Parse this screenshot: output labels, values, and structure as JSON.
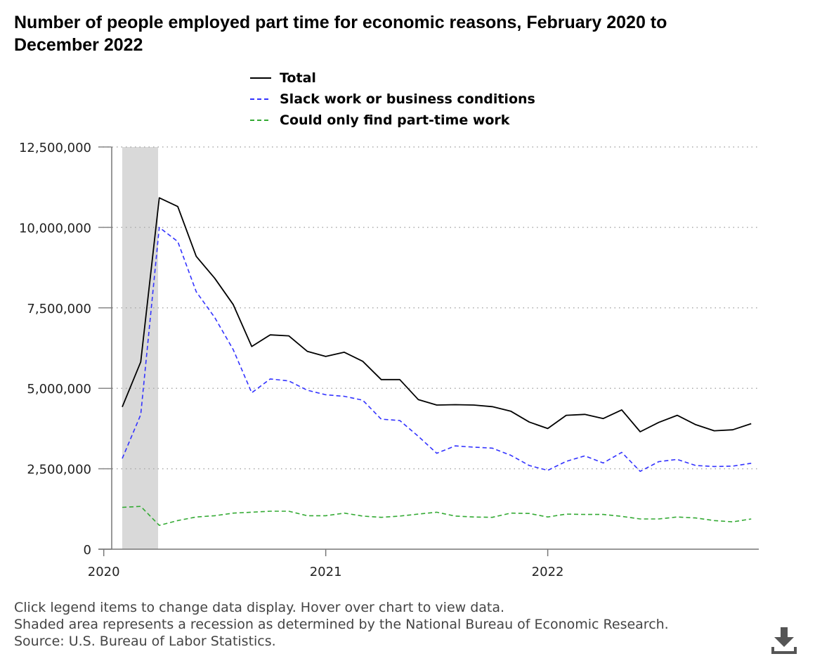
{
  "title": "Number of people employed part time for economic reasons, February 2020 to December 2022",
  "legend": [
    {
      "label": "Total",
      "color": "#000000",
      "dash": "solid"
    },
    {
      "label": "Slack work or business conditions",
      "color": "#3333ff",
      "dash": "dashed"
    },
    {
      "label": "Could only find part-time work",
      "color": "#33aa33",
      "dash": "dashed"
    }
  ],
  "footer": {
    "line1": "Click legend items to change data display. Hover over chart to view data.",
    "line2": "Shaded area represents a recession as determined by the National Bureau of Economic Research.",
    "line3": "Source: U.S. Bureau of Labor Statistics."
  },
  "download_icon": "download-icon",
  "chart_data": {
    "type": "line",
    "title": "Number of people employed part time for economic reasons, February 2020 to December 2022",
    "xlabel": "",
    "ylabel": "",
    "ylim": [
      0,
      12500000
    ],
    "yticks": [
      0,
      2500000,
      5000000,
      7500000,
      10000000,
      12500000
    ],
    "ytick_labels": [
      "0",
      "2,500,000",
      "5,000,000",
      "7,500,000",
      "10,000,000",
      "12,500,000"
    ],
    "xticks": [
      "2020",
      "2021",
      "2022"
    ],
    "xtick_months": [
      "2020-01",
      "2021-01",
      "2022-01"
    ],
    "grid": "horizontal dotted",
    "legend_position": "top",
    "recession": {
      "start": "2020-02",
      "end": "2020-04"
    },
    "x": [
      "2020-02",
      "2020-03",
      "2020-04",
      "2020-05",
      "2020-06",
      "2020-07",
      "2020-08",
      "2020-09",
      "2020-10",
      "2020-11",
      "2020-12",
      "2021-01",
      "2021-02",
      "2021-03",
      "2021-04",
      "2021-05",
      "2021-06",
      "2021-07",
      "2021-08",
      "2021-09",
      "2021-10",
      "2021-11",
      "2021-12",
      "2022-01",
      "2022-02",
      "2022-03",
      "2022-04",
      "2022-05",
      "2022-06",
      "2022-07",
      "2022-08",
      "2022-09",
      "2022-10",
      "2022-11",
      "2022-12"
    ],
    "series": [
      {
        "name": "Total",
        "color": "#000000",
        "dash": "solid",
        "values": [
          4420000,
          5820000,
          10920000,
          10650000,
          9100000,
          8420000,
          7600000,
          6300000,
          6660000,
          6630000,
          6150000,
          5990000,
          6120000,
          5840000,
          5270000,
          5270000,
          4650000,
          4480000,
          4490000,
          4480000,
          4430000,
          4290000,
          3950000,
          3750000,
          4160000,
          4190000,
          4060000,
          4330000,
          3650000,
          3940000,
          4160000,
          3870000,
          3680000,
          3710000,
          3900000
        ]
      },
      {
        "name": "Slack work or business conditions",
        "color": "#3333ff",
        "dash": "dashed",
        "values": [
          2820000,
          4180000,
          10000000,
          9560000,
          8000000,
          7200000,
          6200000,
          4860000,
          5290000,
          5230000,
          4940000,
          4800000,
          4750000,
          4630000,
          4040000,
          4000000,
          3510000,
          2980000,
          3210000,
          3170000,
          3140000,
          2920000,
          2600000,
          2450000,
          2730000,
          2900000,
          2680000,
          3010000,
          2420000,
          2720000,
          2790000,
          2600000,
          2570000,
          2580000,
          2670000
        ]
      },
      {
        "name": "Could only find part-time work",
        "color": "#33aa33",
        "dash": "dashed",
        "values": [
          1300000,
          1330000,
          740000,
          890000,
          1000000,
          1040000,
          1120000,
          1150000,
          1180000,
          1180000,
          1040000,
          1040000,
          1120000,
          1030000,
          990000,
          1030000,
          1090000,
          1150000,
          1030000,
          1000000,
          990000,
          1120000,
          1110000,
          1000000,
          1090000,
          1080000,
          1080000,
          1020000,
          940000,
          940000,
          1000000,
          970000,
          890000,
          850000,
          940000
        ]
      }
    ]
  }
}
